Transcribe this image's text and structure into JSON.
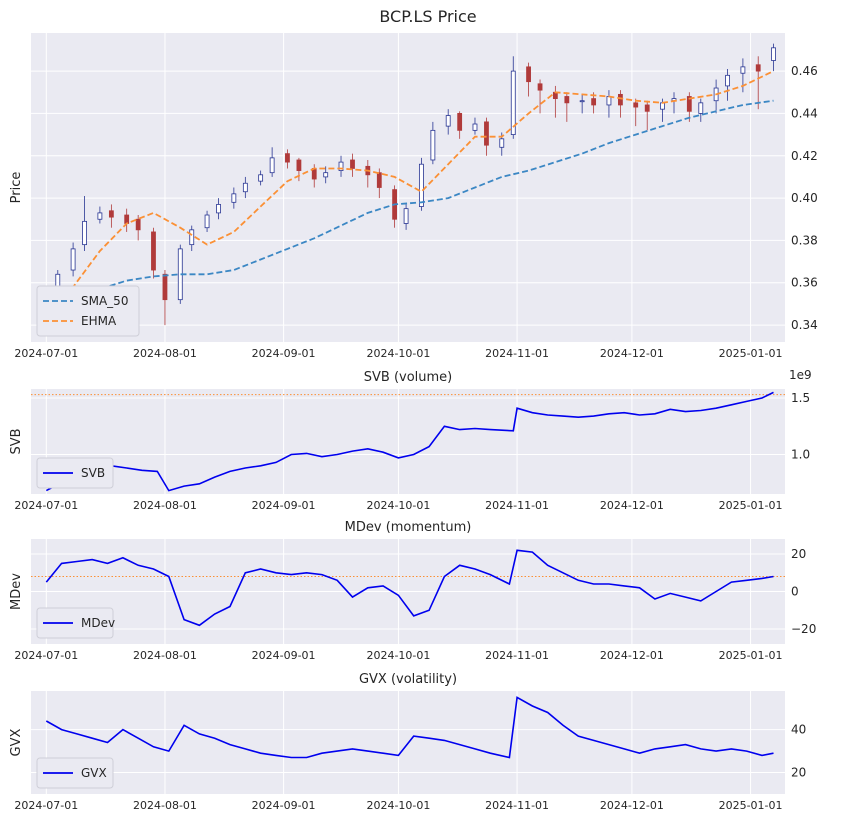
{
  "figure_title": "BCP.LS Price",
  "x_ticks": [
    "2024-07-01",
    "2024-08-01",
    "2024-09-01",
    "2024-10-01",
    "2024-11-01",
    "2024-12-01",
    "2025-01-01"
  ],
  "colors": {
    "background": "#eaeaf2",
    "candle_up": "#283593",
    "candle_down": "#b03a3a",
    "sma": "#3b87c4",
    "ehma": "#fb9035",
    "indicator": "#0000ee",
    "reference": "#fb9035"
  },
  "chart_data": [
    {
      "type": "candlestick",
      "title": "BCP.LS Price",
      "ylabel": "Price",
      "ylim": [
        0.332,
        0.478
      ],
      "y_ticks": [
        "0.34",
        "0.36",
        "0.38",
        "0.40",
        "0.42",
        "0.44",
        "0.46"
      ],
      "y_tick_values": [
        0.34,
        0.36,
        0.38,
        0.4,
        0.42,
        0.44,
        0.46
      ],
      "legend": [
        "SMA_50",
        "EHMA"
      ],
      "legend_position": "lower-left",
      "candles": {
        "dates": [
          "2024-07-01",
          "2024-07-04",
          "2024-07-08",
          "2024-07-11",
          "2024-07-15",
          "2024-07-18",
          "2024-07-22",
          "2024-07-25",
          "2024-07-29",
          "2024-08-01",
          "2024-08-05",
          "2024-08-08",
          "2024-08-12",
          "2024-08-15",
          "2024-08-19",
          "2024-08-22",
          "2024-08-26",
          "2024-08-29",
          "2024-09-02",
          "2024-09-05",
          "2024-09-09",
          "2024-09-12",
          "2024-09-16",
          "2024-09-19",
          "2024-09-23",
          "2024-09-26",
          "2024-09-30",
          "2024-10-03",
          "2024-10-07",
          "2024-10-10",
          "2024-10-14",
          "2024-10-17",
          "2024-10-21",
          "2024-10-24",
          "2024-10-28",
          "2024-10-31",
          "2024-11-04",
          "2024-11-07",
          "2024-11-11",
          "2024-11-14",
          "2024-11-18",
          "2024-11-21",
          "2024-11-25",
          "2024-11-28",
          "2024-12-02",
          "2024-12-05",
          "2024-12-09",
          "2024-12-12",
          "2024-12-16",
          "2024-12-19",
          "2024-12-23",
          "2024-12-26",
          "2024-12-30",
          "2025-01-03",
          "2025-01-07"
        ],
        "open": [
          0.343,
          0.352,
          0.366,
          0.378,
          0.39,
          0.394,
          0.392,
          0.39,
          0.384,
          0.364,
          0.352,
          0.378,
          0.386,
          0.393,
          0.398,
          0.403,
          0.408,
          0.412,
          0.421,
          0.418,
          0.414,
          0.41,
          0.413,
          0.418,
          0.415,
          0.412,
          0.404,
          0.388,
          0.396,
          0.418,
          0.434,
          0.44,
          0.432,
          0.436,
          0.424,
          0.43,
          0.462,
          0.454,
          0.45,
          0.448,
          0.446,
          0.447,
          0.444,
          0.449,
          0.445,
          0.444,
          0.442,
          0.446,
          0.448,
          0.44,
          0.446,
          0.453,
          0.459,
          0.463,
          0.465
        ],
        "close": [
          0.35,
          0.364,
          0.376,
          0.389,
          0.393,
          0.391,
          0.388,
          0.385,
          0.366,
          0.352,
          0.376,
          0.385,
          0.392,
          0.397,
          0.402,
          0.407,
          0.411,
          0.419,
          0.417,
          0.413,
          0.409,
          0.412,
          0.417,
          0.414,
          0.411,
          0.405,
          0.39,
          0.395,
          0.416,
          0.432,
          0.439,
          0.432,
          0.435,
          0.425,
          0.428,
          0.46,
          0.455,
          0.451,
          0.447,
          0.445,
          0.446,
          0.444,
          0.448,
          0.444,
          0.443,
          0.441,
          0.445,
          0.447,
          0.441,
          0.445,
          0.452,
          0.458,
          0.462,
          0.46,
          0.471
        ],
        "high": [
          0.352,
          0.366,
          0.379,
          0.401,
          0.396,
          0.397,
          0.395,
          0.392,
          0.386,
          0.366,
          0.378,
          0.387,
          0.394,
          0.4,
          0.405,
          0.41,
          0.413,
          0.424,
          0.423,
          0.419,
          0.416,
          0.415,
          0.42,
          0.421,
          0.418,
          0.414,
          0.406,
          0.397,
          0.419,
          0.436,
          0.442,
          0.441,
          0.438,
          0.438,
          0.431,
          0.467,
          0.464,
          0.456,
          0.453,
          0.45,
          0.449,
          0.45,
          0.451,
          0.451,
          0.447,
          0.446,
          0.447,
          0.45,
          0.45,
          0.447,
          0.456,
          0.461,
          0.466,
          0.467,
          0.473
        ],
        "low": [
          0.341,
          0.349,
          0.363,
          0.375,
          0.388,
          0.386,
          0.384,
          0.38,
          0.362,
          0.34,
          0.35,
          0.375,
          0.384,
          0.39,
          0.395,
          0.4,
          0.406,
          0.41,
          0.414,
          0.408,
          0.405,
          0.407,
          0.41,
          0.41,
          0.405,
          0.4,
          0.386,
          0.385,
          0.394,
          0.416,
          0.43,
          0.428,
          0.43,
          0.42,
          0.42,
          0.428,
          0.448,
          0.44,
          0.438,
          0.436,
          0.44,
          0.44,
          0.438,
          0.438,
          0.434,
          0.432,
          0.436,
          0.44,
          0.436,
          0.436,
          0.44,
          0.446,
          0.45,
          0.442,
          0.46
        ]
      },
      "series": [
        {
          "name": "SMA_50",
          "x": [
            "2024-07-01",
            "2024-07-08",
            "2024-07-15",
            "2024-07-22",
            "2024-07-29",
            "2024-08-05",
            "2024-08-12",
            "2024-08-19",
            "2024-08-26",
            "2024-09-02",
            "2024-09-09",
            "2024-09-16",
            "2024-09-23",
            "2024-09-30",
            "2024-10-07",
            "2024-10-14",
            "2024-10-21",
            "2024-10-28",
            "2024-11-04",
            "2024-11-11",
            "2024-11-18",
            "2024-11-25",
            "2024-12-02",
            "2024-12-09",
            "2024-12-16",
            "2024-12-23",
            "2024-12-30",
            "2025-01-07"
          ],
          "values": [
            0.343,
            0.352,
            0.357,
            0.361,
            0.363,
            0.364,
            0.364,
            0.366,
            0.371,
            0.376,
            0.381,
            0.387,
            0.393,
            0.397,
            0.398,
            0.4,
            0.405,
            0.41,
            0.413,
            0.417,
            0.421,
            0.426,
            0.43,
            0.434,
            0.438,
            0.441,
            0.444,
            0.446
          ]
        },
        {
          "name": "EHMA",
          "x": [
            "2024-07-01",
            "2024-07-08",
            "2024-07-15",
            "2024-07-22",
            "2024-07-29",
            "2024-08-05",
            "2024-08-12",
            "2024-08-19",
            "2024-08-26",
            "2024-09-02",
            "2024-09-09",
            "2024-09-16",
            "2024-09-23",
            "2024-09-30",
            "2024-10-07",
            "2024-10-14",
            "2024-10-21",
            "2024-10-28",
            "2024-11-04",
            "2024-11-11",
            "2024-11-18",
            "2024-11-25",
            "2024-12-02",
            "2024-12-09",
            "2024-12-16",
            "2024-12-23",
            "2024-12-30",
            "2025-01-07"
          ],
          "values": [
            0.345,
            0.358,
            0.375,
            0.388,
            0.393,
            0.386,
            0.378,
            0.384,
            0.396,
            0.408,
            0.414,
            0.414,
            0.413,
            0.41,
            0.403,
            0.416,
            0.429,
            0.429,
            0.44,
            0.45,
            0.449,
            0.448,
            0.446,
            0.445,
            0.447,
            0.449,
            0.453,
            0.46
          ]
        }
      ]
    },
    {
      "type": "line",
      "title": "SVB (volume)",
      "ylabel": "SVB",
      "y_offset_text": "1e9",
      "ylim": [
        0.65,
        1.58
      ],
      "y_ticks": [
        "1.0",
        "1.5"
      ],
      "y_tick_values": [
        1.0,
        1.5
      ],
      "reference_line": 1.53,
      "legend": [
        "SVB"
      ],
      "legend_position": "lower-left",
      "series": [
        {
          "name": "SVB",
          "x": [
            "2024-07-01",
            "2024-07-05",
            "2024-07-09",
            "2024-07-12",
            "2024-07-16",
            "2024-07-18",
            "2024-07-22",
            "2024-07-26",
            "2024-07-30",
            "2024-08-02",
            "2024-08-06",
            "2024-08-10",
            "2024-08-14",
            "2024-08-18",
            "2024-08-22",
            "2024-08-26",
            "2024-08-30",
            "2024-09-03",
            "2024-09-07",
            "2024-09-11",
            "2024-09-15",
            "2024-09-19",
            "2024-09-23",
            "2024-09-27",
            "2024-10-01",
            "2024-10-05",
            "2024-10-09",
            "2024-10-13",
            "2024-10-17",
            "2024-10-21",
            "2024-10-25",
            "2024-10-31",
            "2024-11-01",
            "2024-11-05",
            "2024-11-09",
            "2024-11-13",
            "2024-11-17",
            "2024-11-21",
            "2024-11-25",
            "2024-11-29",
            "2024-12-03",
            "2024-12-07",
            "2024-12-11",
            "2024-12-15",
            "2024-12-19",
            "2024-12-23",
            "2024-12-27",
            "2024-12-31",
            "2025-01-04",
            "2025-01-07"
          ],
          "values": [
            0.68,
            0.75,
            0.82,
            0.86,
            0.88,
            0.9,
            0.88,
            0.86,
            0.85,
            0.68,
            0.72,
            0.74,
            0.8,
            0.85,
            0.88,
            0.9,
            0.93,
            1.0,
            1.01,
            0.98,
            1.0,
            1.03,
            1.05,
            1.02,
            0.97,
            1.0,
            1.07,
            1.25,
            1.22,
            1.23,
            1.22,
            1.21,
            1.41,
            1.37,
            1.35,
            1.34,
            1.33,
            1.34,
            1.36,
            1.37,
            1.35,
            1.36,
            1.4,
            1.38,
            1.39,
            1.41,
            1.44,
            1.47,
            1.5,
            1.55
          ]
        }
      ]
    },
    {
      "type": "line",
      "title": "MDev (momentum)",
      "ylabel": "MDev",
      "ylim": [
        -28,
        28
      ],
      "y_ticks": [
        "20",
        "0",
        "−20"
      ],
      "y_tick_values": [
        20,
        0,
        -20
      ],
      "reference_line": 8,
      "legend": [
        "MDev"
      ],
      "legend_position": "lower-left",
      "series": [
        {
          "name": "MDev",
          "x": [
            "2024-07-01",
            "2024-07-05",
            "2024-07-09",
            "2024-07-13",
            "2024-07-17",
            "2024-07-21",
            "2024-07-25",
            "2024-07-29",
            "2024-08-02",
            "2024-08-06",
            "2024-08-10",
            "2024-08-14",
            "2024-08-18",
            "2024-08-22",
            "2024-08-26",
            "2024-08-30",
            "2024-09-03",
            "2024-09-07",
            "2024-09-11",
            "2024-09-15",
            "2024-09-19",
            "2024-09-23",
            "2024-09-27",
            "2024-10-01",
            "2024-10-05",
            "2024-10-09",
            "2024-10-13",
            "2024-10-17",
            "2024-10-21",
            "2024-10-25",
            "2024-10-30",
            "2024-11-01",
            "2024-11-05",
            "2024-11-09",
            "2024-11-13",
            "2024-11-17",
            "2024-11-21",
            "2024-11-25",
            "2024-11-29",
            "2024-12-03",
            "2024-12-07",
            "2024-12-11",
            "2024-12-15",
            "2024-12-19",
            "2024-12-23",
            "2024-12-27",
            "2024-12-31",
            "2025-01-04",
            "2025-01-07"
          ],
          "values": [
            5,
            15,
            16,
            17,
            15,
            18,
            14,
            12,
            8,
            -15,
            -18,
            -12,
            -8,
            10,
            12,
            10,
            9,
            10,
            9,
            6,
            -3,
            2,
            3,
            -2,
            -13,
            -10,
            8,
            14,
            12,
            9,
            4,
            22,
            21,
            14,
            10,
            6,
            4,
            4,
            3,
            2,
            -4,
            -1,
            -3,
            -5,
            0,
            5,
            6,
            7,
            8
          ]
        }
      ]
    },
    {
      "type": "line",
      "title": "GVX (volatility)",
      "ylabel": "GVX",
      "ylim": [
        10,
        58
      ],
      "y_ticks": [
        "40",
        "20"
      ],
      "y_tick_values": [
        40,
        20
      ],
      "legend": [
        "GVX"
      ],
      "legend_position": "lower-left",
      "series": [
        {
          "name": "GVX",
          "x": [
            "2024-07-01",
            "2024-07-05",
            "2024-07-09",
            "2024-07-13",
            "2024-07-17",
            "2024-07-21",
            "2024-07-25",
            "2024-07-29",
            "2024-08-02",
            "2024-08-06",
            "2024-08-10",
            "2024-08-14",
            "2024-08-18",
            "2024-08-22",
            "2024-08-26",
            "2024-08-30",
            "2024-09-03",
            "2024-09-07",
            "2024-09-11",
            "2024-09-15",
            "2024-09-19",
            "2024-09-23",
            "2024-09-27",
            "2024-10-01",
            "2024-10-05",
            "2024-10-09",
            "2024-10-13",
            "2024-10-17",
            "2024-10-21",
            "2024-10-25",
            "2024-10-30",
            "2024-11-01",
            "2024-11-05",
            "2024-11-09",
            "2024-11-13",
            "2024-11-17",
            "2024-11-21",
            "2024-11-25",
            "2024-11-29",
            "2024-12-03",
            "2024-12-07",
            "2024-12-11",
            "2024-12-15",
            "2024-12-19",
            "2024-12-23",
            "2024-12-27",
            "2024-12-31",
            "2025-01-04",
            "2025-01-07"
          ],
          "values": [
            44,
            40,
            38,
            36,
            34,
            40,
            36,
            32,
            30,
            42,
            38,
            36,
            33,
            31,
            29,
            28,
            27,
            27,
            29,
            30,
            31,
            30,
            29,
            28,
            37,
            36,
            35,
            33,
            31,
            29,
            27,
            55,
            51,
            48,
            42,
            37,
            35,
            33,
            31,
            29,
            31,
            32,
            33,
            31,
            30,
            31,
            30,
            28,
            29
          ]
        }
      ]
    }
  ]
}
